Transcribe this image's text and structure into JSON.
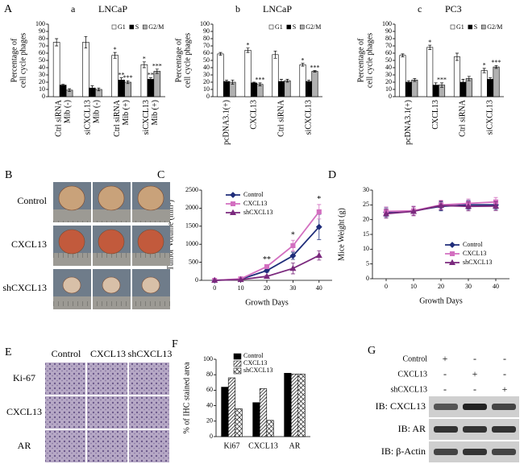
{
  "chart_data": [
    {
      "type": "bar",
      "panel": "A",
      "subpanel": "a",
      "title": "LNCaP",
      "ylabel": [
        "Percentage of",
        "cell cycle phages"
      ],
      "categories": [
        "Ctrl siRNA",
        "siCXCL13",
        "Ctrl siRNA",
        "siCXCL13"
      ],
      "category_sublabels": [
        "Mib (-)",
        "Mib (-)",
        "Mib (+)",
        "Mib (+)"
      ],
      "ylim": [
        0,
        100
      ],
      "yticks": [
        0,
        10,
        20,
        30,
        40,
        50,
        60,
        70,
        80,
        90,
        100
      ],
      "legend": "upper right",
      "series": [
        {
          "name": "G1",
          "color": "#ffffff",
          "values": [
            75,
            75,
            57,
            44
          ],
          "errors": [
            5,
            8,
            4,
            4
          ],
          "significance": [
            null,
            null,
            "*",
            "*"
          ]
        },
        {
          "name": "S",
          "color": "#000000",
          "values": [
            16,
            12,
            23,
            24
          ],
          "errors": [
            1,
            3,
            3,
            2
          ],
          "significance": [
            null,
            null,
            "**",
            "**"
          ]
        },
        {
          "name": "G2/M",
          "color": "#b0b0b0",
          "values": [
            9,
            10,
            20,
            35
          ],
          "errors": [
            2,
            2,
            2,
            3
          ],
          "significance": [
            null,
            null,
            "***",
            "***"
          ]
        }
      ]
    },
    {
      "type": "bar",
      "subpanel": "b",
      "title": "LNCaP",
      "ylabel": [
        "Percentage of",
        "cell cycle phages"
      ],
      "categories": [
        "pcDNA3.1(+)",
        "CXCL13",
        "Ctrl siRNA",
        "siCXCL13"
      ],
      "ylim": [
        0,
        100
      ],
      "yticks": [
        0,
        10,
        20,
        30,
        40,
        50,
        60,
        70,
        80,
        90,
        100
      ],
      "legend": "upper right",
      "series": [
        {
          "name": "G1",
          "color": "#ffffff",
          "values": [
            59,
            64,
            58,
            44
          ],
          "errors": [
            2,
            3,
            5,
            2
          ],
          "significance": [
            null,
            "*",
            null,
            "*"
          ]
        },
        {
          "name": "S",
          "color": "#000000",
          "values": [
            21,
            19,
            21,
            21
          ],
          "errors": [
            2,
            1,
            3,
            2
          ],
          "significance": [
            null,
            null,
            null,
            null
          ]
        },
        {
          "name": "G2/M",
          "color": "#b0b0b0",
          "values": [
            20,
            17,
            22,
            35
          ],
          "errors": [
            3,
            2,
            2,
            1
          ],
          "significance": [
            null,
            "***",
            null,
            "***"
          ]
        }
      ]
    },
    {
      "type": "bar",
      "subpanel": "c",
      "title": "PC3",
      "ylabel": [
        "Percentage of",
        "cell cycle phages"
      ],
      "categories": [
        "pcDNA3.1(+)",
        "CXCL13",
        "Ctrl siRNA",
        "siCXCL13"
      ],
      "ylim": [
        0,
        100
      ],
      "yticks": [
        0,
        10,
        20,
        30,
        40,
        50,
        60,
        70,
        80,
        90,
        100
      ],
      "legend": "upper right",
      "series": [
        {
          "name": "G1",
          "color": "#ffffff",
          "values": [
            57,
            68,
            55,
            36
          ],
          "errors": [
            2,
            3,
            5,
            3
          ],
          "significance": [
            null,
            "*",
            null,
            "*"
          ]
        },
        {
          "name": "S",
          "color": "#000000",
          "values": [
            20,
            16,
            20,
            24
          ],
          "errors": [
            2,
            3,
            4,
            2
          ],
          "significance": [
            null,
            null,
            null,
            null
          ]
        },
        {
          "name": "G2/M",
          "color": "#b0b0b0",
          "values": [
            23,
            16,
            25,
            41
          ],
          "errors": [
            2,
            3,
            3,
            2
          ],
          "significance": [
            null,
            "***",
            null,
            "***"
          ]
        }
      ]
    },
    {
      "type": "line",
      "panel": "C",
      "ylabel": "Tumor Volume (mm³)",
      "xlabel": "Growth Days",
      "x": [
        0,
        10,
        20,
        30,
        40
      ],
      "xlim": [
        -5,
        45
      ],
      "xticks": [
        0,
        10,
        20,
        30,
        40
      ],
      "ylim": [
        0,
        2500
      ],
      "yticks": [
        0,
        500,
        1000,
        1500,
        2000,
        2500
      ],
      "legend": "upper left",
      "series": [
        {
          "name": "Control",
          "color": "#1f2d7a",
          "marker": "diamond",
          "values": [
            0,
            30,
            270,
            680,
            1480
          ],
          "errors": [
            0,
            10,
            50,
            100,
            350
          ]
        },
        {
          "name": "CXCL13",
          "color": "#d36fc0",
          "marker": "square",
          "values": [
            0,
            40,
            380,
            960,
            1900
          ],
          "errors": [
            0,
            10,
            50,
            150,
            200
          ]
        },
        {
          "name": "shCXCL13",
          "color": "#7b2a7e",
          "marker": "triangle",
          "values": [
            0,
            20,
            110,
            330,
            690
          ],
          "errors": [
            0,
            5,
            30,
            150,
            130
          ]
        }
      ],
      "annotations": [
        {
          "x": 20,
          "text": "**"
        },
        {
          "x": 30,
          "text": "*"
        },
        {
          "x": 40,
          "text": "*"
        }
      ]
    },
    {
      "type": "line",
      "panel": "D",
      "ylabel": "Mice Weight (g)",
      "xlabel": "Growth Days",
      "x": [
        0,
        10,
        20,
        30,
        40
      ],
      "xlim": [
        -5,
        45
      ],
      "xticks": [
        0,
        10,
        20,
        30,
        40
      ],
      "ylim": [
        0,
        30
      ],
      "yticks": [
        0,
        5,
        10,
        15,
        20,
        25,
        30
      ],
      "legend": "lower right",
      "series": [
        {
          "name": "Control",
          "color": "#1f2d7a",
          "marker": "diamond",
          "values": [
            22.5,
            23,
            24.5,
            25,
            25
          ],
          "errors": [
            1.5,
            1.5,
            1.5,
            1.5,
            1.5
          ]
        },
        {
          "name": "CXCL13",
          "color": "#d36fc0",
          "marker": "square",
          "values": [
            22.8,
            23,
            25,
            25.5,
            26
          ],
          "errors": [
            1.5,
            1.5,
            1.5,
            1.5,
            1.5
          ]
        },
        {
          "name": "shCXCL13",
          "color": "#7b2a7e",
          "marker": "triangle",
          "values": [
            22,
            22.8,
            24.8,
            24.5,
            24.6
          ],
          "errors": [
            1.5,
            1.5,
            1.5,
            1.5,
            1.5
          ]
        }
      ]
    },
    {
      "type": "bar",
      "panel": "F",
      "ylabel": "% of IHC stained area",
      "categories": [
        "Ki67",
        "CXCL13",
        "AR"
      ],
      "ylim": [
        0,
        100
      ],
      "yticks": [
        0,
        20,
        40,
        60,
        80,
        100
      ],
      "legend": "upper center",
      "series": [
        {
          "name": "Control",
          "color": "#000000",
          "pattern": "solid",
          "values": [
            64,
            44,
            82
          ]
        },
        {
          "name": "CXCL13",
          "color": "#000000",
          "pattern": "diagonal",
          "values": [
            76,
            62,
            81
          ]
        },
        {
          "name": "shCXCL13",
          "color": "#000000",
          "pattern": "cross",
          "values": [
            36,
            21,
            81
          ]
        }
      ]
    }
  ],
  "tumor_photos": {
    "panel": "B",
    "rows": [
      "Control",
      "CXCL13",
      "shCXCL13"
    ]
  },
  "ihc_images": {
    "panel": "E",
    "columns": [
      "Control",
      "CXCL13",
      "shCXCL13"
    ],
    "rows": [
      "Ki-67",
      "CXCL13",
      "AR"
    ]
  },
  "western_blot": {
    "panel": "G",
    "conditions": [
      {
        "name": "Control",
        "signs": [
          "+",
          "-",
          "-"
        ]
      },
      {
        "name": "CXCL13",
        "signs": [
          "-",
          "+",
          "-"
        ]
      },
      {
        "name": "shCXCL13",
        "signs": [
          "-",
          "-",
          "+"
        ]
      }
    ],
    "blots": [
      "IB: CXCL13",
      "IB: AR",
      "IB: β-Actin"
    ]
  }
}
